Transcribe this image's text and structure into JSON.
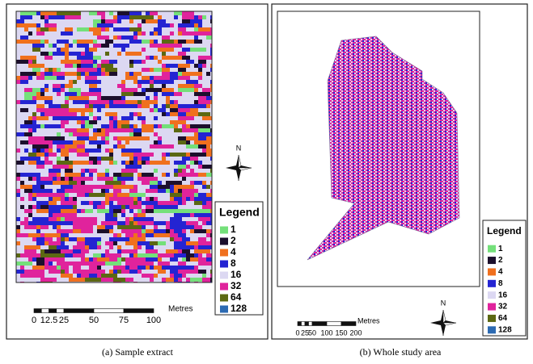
{
  "panels": [
    {
      "caption": "(a) Sample extract",
      "north": "N",
      "legend": {
        "title": "Legend",
        "items": [
          {
            "label": "1",
            "color": "#74e07a"
          },
          {
            "label": "2",
            "color": "#1c0f2c"
          },
          {
            "label": "4",
            "color": "#f0701e"
          },
          {
            "label": "8",
            "color": "#2424d2"
          },
          {
            "label": "16",
            "color": "#dcd8f2"
          },
          {
            "label": "32",
            "color": "#e0239c"
          },
          {
            "label": "64",
            "color": "#5c6812"
          },
          {
            "label": "128",
            "color": "#2c6ab2"
          }
        ]
      },
      "scale": {
        "unit": "Metres",
        "labels": [
          "0",
          "12.5",
          "25",
          "50",
          "75",
          "100"
        ]
      }
    },
    {
      "caption": "(b) Whole study area",
      "north": "N",
      "legend": {
        "title": "Legend",
        "items": [
          {
            "label": "1",
            "color": "#74e07a"
          },
          {
            "label": "2",
            "color": "#1c0f2c"
          },
          {
            "label": "4",
            "color": "#f0701e"
          },
          {
            "label": "8",
            "color": "#2424d2"
          },
          {
            "label": "16",
            "color": "#dcd8f2"
          },
          {
            "label": "32",
            "color": "#e0239c"
          },
          {
            "label": "64",
            "color": "#5c6812"
          },
          {
            "label": "128",
            "color": "#2c6ab2"
          }
        ]
      },
      "scale": {
        "unit": "Metres",
        "labels": [
          "0",
          "25",
          "50",
          "100",
          "150",
          "200"
        ]
      }
    }
  ]
}
